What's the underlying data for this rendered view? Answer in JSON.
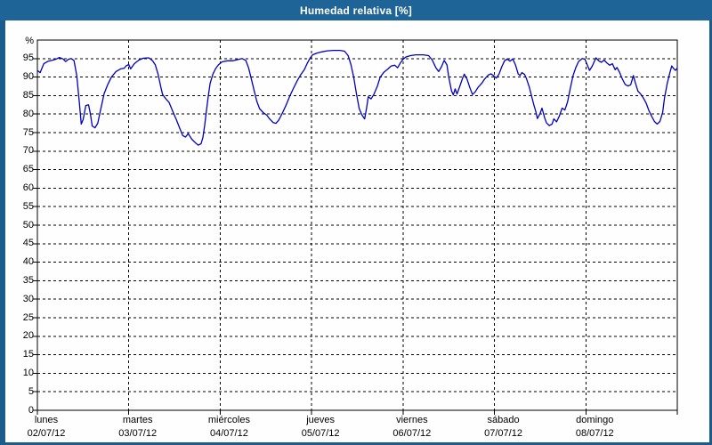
{
  "window": {
    "title": "Humedad relativa [%]"
  },
  "colors": {
    "titlebar_bg": "#1f6496",
    "frame_bg": "#1c5c8c",
    "panel_bg": "#fdfefd",
    "line": "#0000c0",
    "grid": "#000000",
    "text": "#000000"
  },
  "chart_data": {
    "type": "line",
    "title": "Humedad relativa [%]",
    "xlabel": "",
    "ylabel": "%",
    "ylim": [
      0,
      100
    ],
    "yticks": [
      0,
      5,
      10,
      15,
      20,
      25,
      30,
      35,
      40,
      45,
      50,
      55,
      60,
      65,
      70,
      75,
      80,
      85,
      90,
      95
    ],
    "grid": "dashed horizontal every 5 units, dashed vertical at each day boundary",
    "legend": "none",
    "xlim_days": [
      0,
      7
    ],
    "x_days": [
      {
        "name": "lunes",
        "date": "02/07/12"
      },
      {
        "name": "martes",
        "date": "03/07/12"
      },
      {
        "name": "miércoles",
        "date": "04/07/12"
      },
      {
        "name": "jueves",
        "date": "05/07/12"
      },
      {
        "name": "viernes",
        "date": "06/07/12"
      },
      {
        "name": "sábado",
        "date": "07/07/12"
      },
      {
        "name": "domingo",
        "date": "08/07/12"
      }
    ],
    "series": [
      {
        "name": "Humedad relativa",
        "color": "#0000c0",
        "points": [
          [
            0.0,
            91.8
          ],
          [
            0.03,
            91.2
          ],
          [
            0.07,
            93.6
          ],
          [
            0.12,
            94.3
          ],
          [
            0.17,
            94.6
          ],
          [
            0.21,
            94.9
          ],
          [
            0.24,
            95.3
          ],
          [
            0.28,
            94.9
          ],
          [
            0.31,
            94.2
          ],
          [
            0.34,
            94.8
          ],
          [
            0.37,
            95.0
          ],
          [
            0.4,
            94.5
          ],
          [
            0.43,
            90.5
          ],
          [
            0.46,
            83.0
          ],
          [
            0.48,
            77.3
          ],
          [
            0.5,
            78.5
          ],
          [
            0.53,
            82.3
          ],
          [
            0.56,
            82.5
          ],
          [
            0.58,
            80.0
          ],
          [
            0.6,
            76.8
          ],
          [
            0.63,
            76.3
          ],
          [
            0.66,
            77.5
          ],
          [
            0.69,
            81.0
          ],
          [
            0.73,
            85.5
          ],
          [
            0.77,
            88.0
          ],
          [
            0.81,
            90.0
          ],
          [
            0.86,
            91.5
          ],
          [
            0.91,
            92.2
          ],
          [
            0.95,
            92.4
          ],
          [
            0.97,
            93.0
          ],
          [
            1.0,
            93.4
          ],
          [
            1.02,
            92.2
          ],
          [
            1.06,
            93.6
          ],
          [
            1.11,
            94.6
          ],
          [
            1.16,
            95.1
          ],
          [
            1.22,
            95.2
          ],
          [
            1.26,
            94.4
          ],
          [
            1.29,
            93.3
          ],
          [
            1.32,
            90.8
          ],
          [
            1.35,
            87.3
          ],
          [
            1.37,
            85.3
          ],
          [
            1.41,
            84.0
          ],
          [
            1.44,
            83.2
          ],
          [
            1.48,
            80.8
          ],
          [
            1.52,
            78.5
          ],
          [
            1.56,
            76.0
          ],
          [
            1.59,
            74.2
          ],
          [
            1.62,
            73.8
          ],
          [
            1.65,
            74.7
          ],
          [
            1.69,
            73.2
          ],
          [
            1.73,
            72.2
          ],
          [
            1.76,
            71.6
          ],
          [
            1.79,
            72.0
          ],
          [
            1.81,
            73.6
          ],
          [
            1.83,
            77.0
          ],
          [
            1.85,
            81.0
          ],
          [
            1.87,
            85.0
          ],
          [
            1.89,
            88.3
          ],
          [
            1.92,
            90.8
          ],
          [
            1.95,
            92.3
          ],
          [
            1.98,
            93.3
          ],
          [
            2.02,
            94.1
          ],
          [
            2.08,
            94.4
          ],
          [
            2.14,
            94.4
          ],
          [
            2.19,
            94.7
          ],
          [
            2.24,
            95.0
          ],
          [
            2.28,
            94.5
          ],
          [
            2.31,
            92.5
          ],
          [
            2.34,
            89.5
          ],
          [
            2.37,
            86.5
          ],
          [
            2.4,
            83.5
          ],
          [
            2.43,
            81.5
          ],
          [
            2.47,
            80.4
          ],
          [
            2.51,
            79.7
          ],
          [
            2.54,
            78.7
          ],
          [
            2.58,
            77.7
          ],
          [
            2.61,
            77.5
          ],
          [
            2.64,
            78.4
          ],
          [
            2.68,
            80.3
          ],
          [
            2.72,
            82.4
          ],
          [
            2.76,
            84.8
          ],
          [
            2.8,
            86.9
          ],
          [
            2.84,
            88.9
          ],
          [
            2.88,
            90.6
          ],
          [
            2.92,
            92.0
          ],
          [
            2.95,
            93.6
          ],
          [
            2.98,
            95.0
          ],
          [
            3.01,
            96.0
          ],
          [
            3.06,
            96.5
          ],
          [
            3.11,
            96.8
          ],
          [
            3.17,
            97.1
          ],
          [
            3.24,
            97.2
          ],
          [
            3.31,
            97.2
          ],
          [
            3.36,
            97.0
          ],
          [
            3.4,
            95.8
          ],
          [
            3.43,
            93.4
          ],
          [
            3.46,
            90.0
          ],
          [
            3.49,
            85.5
          ],
          [
            3.52,
            81.5
          ],
          [
            3.55,
            79.8
          ],
          [
            3.58,
            78.7
          ],
          [
            3.6,
            81.5
          ],
          [
            3.62,
            84.7
          ],
          [
            3.65,
            84.1
          ],
          [
            3.68,
            85.3
          ],
          [
            3.72,
            87.6
          ],
          [
            3.75,
            90.0
          ],
          [
            3.79,
            91.3
          ],
          [
            3.83,
            92.1
          ],
          [
            3.87,
            93.0
          ],
          [
            3.91,
            93.2
          ],
          [
            3.94,
            92.5
          ],
          [
            3.97,
            93.8
          ],
          [
            4.0,
            94.8
          ],
          [
            4.03,
            95.4
          ],
          [
            4.08,
            95.8
          ],
          [
            4.14,
            96.0
          ],
          [
            4.22,
            96.0
          ],
          [
            4.28,
            95.8
          ],
          [
            4.32,
            94.6
          ],
          [
            4.36,
            92.5
          ],
          [
            4.39,
            91.5
          ],
          [
            4.42,
            92.8
          ],
          [
            4.45,
            94.5
          ],
          [
            4.48,
            93.3
          ],
          [
            4.5,
            90.0
          ],
          [
            4.53,
            86.3
          ],
          [
            4.55,
            85.2
          ],
          [
            4.57,
            86.8
          ],
          [
            4.59,
            85.4
          ],
          [
            4.62,
            87.4
          ],
          [
            4.65,
            89.6
          ],
          [
            4.67,
            90.8
          ],
          [
            4.7,
            89.4
          ],
          [
            4.73,
            87.2
          ],
          [
            4.76,
            85.3
          ],
          [
            4.79,
            86.0
          ],
          [
            4.82,
            87.2
          ],
          [
            4.86,
            88.3
          ],
          [
            4.89,
            89.4
          ],
          [
            4.93,
            90.5
          ],
          [
            4.96,
            90.9
          ],
          [
            4.99,
            90.4
          ],
          [
            5.02,
            89.7
          ],
          [
            5.05,
            90.8
          ],
          [
            5.08,
            92.8
          ],
          [
            5.11,
            94.4
          ],
          [
            5.14,
            94.9
          ],
          [
            5.17,
            94.3
          ],
          [
            5.2,
            94.9
          ],
          [
            5.23,
            93.3
          ],
          [
            5.26,
            90.8
          ],
          [
            5.28,
            90.4
          ],
          [
            5.3,
            91.2
          ],
          [
            5.33,
            90.7
          ],
          [
            5.35,
            89.6
          ],
          [
            5.38,
            87.4
          ],
          [
            5.4,
            85.4
          ],
          [
            5.43,
            82.6
          ],
          [
            5.45,
            80.9
          ],
          [
            5.47,
            78.8
          ],
          [
            5.5,
            80.2
          ],
          [
            5.52,
            81.6
          ],
          [
            5.55,
            78.9
          ],
          [
            5.57,
            77.6
          ],
          [
            5.6,
            76.9
          ],
          [
            5.63,
            77.3
          ],
          [
            5.65,
            78.7
          ],
          [
            5.68,
            77.9
          ],
          [
            5.71,
            79.5
          ],
          [
            5.74,
            81.6
          ],
          [
            5.77,
            81.1
          ],
          [
            5.8,
            83.3
          ],
          [
            5.83,
            87.0
          ],
          [
            5.86,
            90.4
          ],
          [
            5.89,
            92.6
          ],
          [
            5.92,
            94.2
          ],
          [
            5.96,
            95.0
          ],
          [
            5.99,
            94.8
          ],
          [
            6.02,
            93.0
          ],
          [
            6.04,
            91.8
          ],
          [
            6.07,
            93.0
          ],
          [
            6.11,
            95.2
          ],
          [
            6.14,
            94.4
          ],
          [
            6.17,
            94.0
          ],
          [
            6.2,
            94.6
          ],
          [
            6.23,
            93.8
          ],
          [
            6.26,
            93.2
          ],
          [
            6.29,
            93.6
          ],
          [
            6.32,
            92.0
          ],
          [
            6.34,
            92.6
          ],
          [
            6.37,
            91.2
          ],
          [
            6.4,
            89.4
          ],
          [
            6.43,
            88.0
          ],
          [
            6.46,
            87.6
          ],
          [
            6.49,
            87.9
          ],
          [
            6.52,
            90.4
          ],
          [
            6.54,
            88.5
          ],
          [
            6.57,
            86.2
          ],
          [
            6.6,
            85.4
          ],
          [
            6.63,
            84.3
          ],
          [
            6.66,
            82.9
          ],
          [
            6.69,
            80.9
          ],
          [
            6.72,
            79.4
          ],
          [
            6.75,
            78.0
          ],
          [
            6.78,
            77.3
          ],
          [
            6.81,
            78.0
          ],
          [
            6.84,
            80.5
          ],
          [
            6.86,
            84.3
          ],
          [
            6.89,
            88.3
          ],
          [
            6.92,
            91.3
          ],
          [
            6.94,
            93.0
          ],
          [
            6.96,
            92.3
          ],
          [
            6.98,
            91.8
          ],
          [
            7.0,
            92.4
          ]
        ]
      }
    ]
  }
}
